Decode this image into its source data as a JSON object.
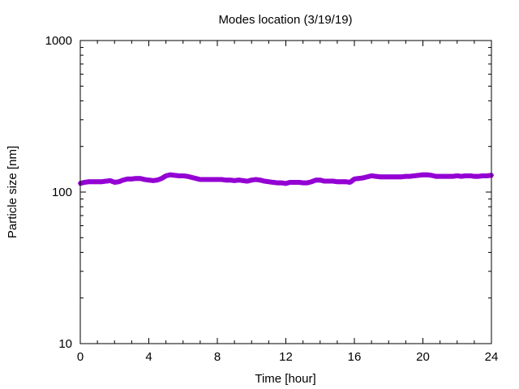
{
  "chart_data": {
    "type": "scatter",
    "title": "Modes location (3/19/19)",
    "xlabel": "Time [hour]",
    "ylabel": "Particle size [nm]",
    "xlim": [
      0,
      24
    ],
    "ylim": [
      10,
      1000
    ],
    "yscale": "log",
    "grid": false,
    "legend": "none",
    "x_ticks": [
      0,
      4,
      8,
      12,
      16,
      20,
      24
    ],
    "x_tick_labels": [
      "0",
      "4",
      "8",
      "12",
      "16",
      "20",
      "24"
    ],
    "y_ticks": [
      10,
      100,
      1000
    ],
    "y_tick_labels": [
      "10",
      "100",
      "1000"
    ],
    "series": [
      {
        "color": "#9400d3",
        "marker": "star",
        "x": [
          0,
          0.25,
          0.5,
          0.75,
          1,
          1.25,
          1.5,
          1.75,
          2,
          2.25,
          2.5,
          2.75,
          3,
          3.25,
          3.5,
          3.75,
          4,
          4.25,
          4.5,
          4.75,
          5,
          5.25,
          5.5,
          5.75,
          6,
          6.25,
          6.5,
          6.75,
          7,
          7.25,
          7.5,
          7.75,
          8,
          8.25,
          8.5,
          8.75,
          9,
          9.25,
          9.5,
          9.75,
          10,
          10.25,
          10.5,
          10.75,
          11,
          11.25,
          11.5,
          11.75,
          12,
          12.25,
          12.5,
          12.75,
          13,
          13.25,
          13.5,
          13.75,
          14,
          14.25,
          14.5,
          14.75,
          15,
          15.25,
          15.5,
          15.75,
          16,
          16.25,
          16.5,
          16.75,
          17,
          17.25,
          17.5,
          17.75,
          18,
          18.25,
          18.5,
          18.75,
          19,
          19.25,
          19.5,
          19.75,
          20,
          20.25,
          20.5,
          20.75,
          21,
          21.25,
          21.5,
          21.75,
          22,
          22.25,
          22.5,
          22.75,
          23,
          23.25,
          23.5,
          23.75,
          24
        ],
        "y": [
          114,
          116,
          117,
          117,
          117,
          117,
          118,
          119,
          116,
          117,
          120,
          122,
          122,
          123,
          123,
          121,
          120,
          119,
          120,
          123,
          128,
          130,
          129,
          128,
          128,
          127,
          125,
          123,
          121,
          121,
          121,
          121,
          121,
          121,
          120,
          120,
          119,
          120,
          119,
          118,
          120,
          121,
          120,
          118,
          117,
          116,
          115,
          115,
          114,
          116,
          116,
          116,
          115,
          115,
          117,
          120,
          120,
          118,
          118,
          118,
          117,
          117,
          117,
          116,
          122,
          123,
          124,
          126,
          128,
          127,
          126,
          126,
          126,
          126,
          126,
          126,
          127,
          127,
          128,
          129,
          130,
          130,
          129,
          127,
          127,
          127,
          127,
          127,
          128,
          127,
          128,
          128,
          127,
          127,
          128,
          128,
          129
        ]
      }
    ]
  }
}
